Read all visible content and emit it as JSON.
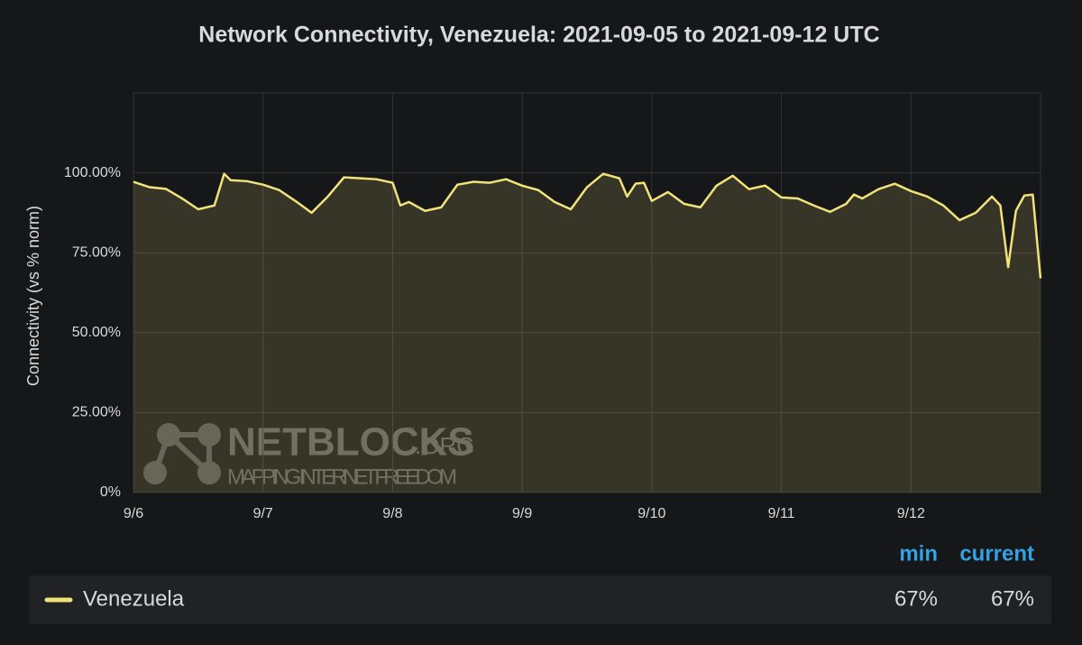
{
  "chart_data": {
    "type": "line",
    "title": "Network Connectivity, Venezuela: 2021-09-05 to 2021-09-12 UTC",
    "y_label": "Connectivity (vs % norm)",
    "x": [
      6,
      6.125,
      6.25,
      6.375,
      6.5,
      6.625,
      6.7,
      6.75,
      6.875,
      7,
      7.125,
      7.25,
      7.375,
      7.5,
      7.625,
      7.75,
      7.875,
      8,
      8.06,
      8.125,
      8.25,
      8.375,
      8.5,
      8.625,
      8.75,
      8.875,
      9,
      9.125,
      9.25,
      9.375,
      9.5,
      9.625,
      9.75,
      9.81,
      9.875,
      9.94,
      10,
      10.125,
      10.25,
      10.375,
      10.5,
      10.625,
      10.75,
      10.875,
      11,
      11.125,
      11.25,
      11.375,
      11.5,
      11.56,
      11.625,
      11.75,
      11.875,
      12,
      12.125,
      12.25,
      12.375,
      12.5,
      12.625,
      12.69,
      12.75,
      12.81,
      12.875,
      12.94,
      13
    ],
    "series": [
      {
        "name": "Venezuela",
        "color": "#f2e27a",
        "values": [
          97.2,
          95.5,
          95,
          92,
          88.6,
          89.8,
          99.7,
          97.7,
          97.4,
          96.3,
          94.6,
          91.2,
          87.5,
          92.6,
          98.6,
          98.3,
          98,
          96.9,
          89.8,
          90.9,
          88.1,
          89.2,
          96.3,
          97.2,
          96.9,
          98,
          96,
          94.6,
          90.9,
          88.6,
          95.5,
          99.7,
          98.3,
          92.6,
          96.6,
          96.9,
          91.2,
          94,
          90.3,
          89.2,
          96,
          99.1,
          94.9,
          96,
          92.3,
          92,
          89.8,
          87.8,
          90.3,
          93.2,
          92,
          94.9,
          96.6,
          94.3,
          92.6,
          89.8,
          85.2,
          87.5,
          92.6,
          89.8,
          70.5,
          88.1,
          92.9,
          93.2,
          67
        ]
      }
    ],
    "xlim": [
      6,
      13
    ],
    "xticks": [
      {
        "value": 6,
        "label": "9/6"
      },
      {
        "value": 7,
        "label": "9/7"
      },
      {
        "value": 8,
        "label": "9/8"
      },
      {
        "value": 9,
        "label": "9/9"
      },
      {
        "value": 10,
        "label": "9/10"
      },
      {
        "value": 11,
        "label": "9/11"
      },
      {
        "value": 12,
        "label": "9/12"
      }
    ],
    "ylim": [
      0,
      125
    ],
    "yticks": [
      {
        "value": 0,
        "label": "0%"
      },
      {
        "value": 25,
        "label": "25.00%"
      },
      {
        "value": 50,
        "label": "50.00%"
      },
      {
        "value": 75,
        "label": "75.00%"
      },
      {
        "value": 100,
        "label": "100.00%"
      }
    ],
    "grid": true,
    "legend": {
      "headers": [
        "min",
        "current"
      ],
      "values": [
        67,
        67
      ],
      "value_labels": [
        "67%",
        "67%"
      ]
    },
    "watermark": {
      "brand": "NETBLOCKS",
      "mark": "™",
      "suffix": ".ORG",
      "tagline": "MAPPING INTERNET FREEDOM"
    }
  }
}
